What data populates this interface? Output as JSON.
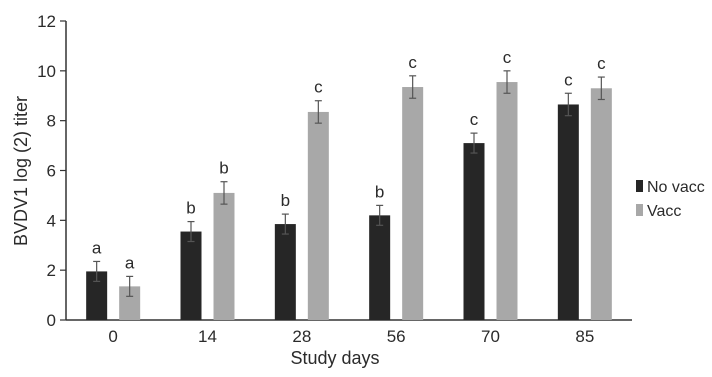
{
  "chart_data": {
    "type": "bar",
    "xlabel": "Study days",
    "ylabel": "BVDV1 log (2) titer",
    "categories": [
      "0",
      "14",
      "28",
      "56",
      "70",
      "85"
    ],
    "ylim": [
      0,
      12
    ],
    "yticks": [
      "0",
      "2",
      "4",
      "6",
      "8",
      "10",
      "12"
    ],
    "grid": false,
    "legend_position": "right",
    "series": [
      {
        "name": "No vacc",
        "color": "#262626",
        "values": [
          1.95,
          3.55,
          3.85,
          4.2,
          7.1,
          8.65
        ],
        "errors": [
          0.4,
          0.4,
          0.4,
          0.4,
          0.4,
          0.45
        ],
        "labels": [
          "a",
          "b",
          "b",
          "b",
          "c",
          "c"
        ]
      },
      {
        "name": "Vacc",
        "color": "#a8a8a8",
        "values": [
          1.35,
          5.1,
          8.35,
          9.35,
          9.55,
          9.3
        ],
        "errors": [
          0.4,
          0.45,
          0.45,
          0.45,
          0.45,
          0.45
        ],
        "labels": [
          "a",
          "b",
          "c",
          "c",
          "c",
          "c"
        ]
      }
    ]
  }
}
